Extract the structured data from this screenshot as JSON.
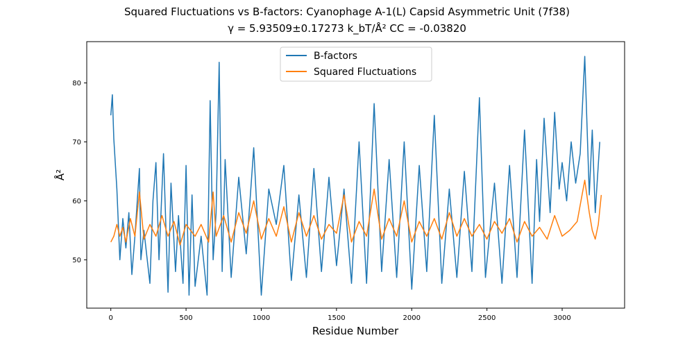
{
  "chart_data": {
    "type": "line",
    "title": "Squared Fluctuations vs B-factors: Cyanophage A-1(L) Capsid Asymmetric Unit (7f38)",
    "subtitle": "γ = 5.93509±0.17273 k_bT/Å²  CC = -0.03820",
    "xlabel": "Residue Number",
    "ylabel": "Å²",
    "xlim": [
      -160,
      3415
    ],
    "ylim": [
      41.8,
      87.0
    ],
    "xticks": [
      0,
      500,
      1000,
      1500,
      2000,
      2500,
      3000
    ],
    "yticks": [
      50,
      60,
      70,
      80
    ],
    "grid": false,
    "legend_position": "top-center",
    "series": [
      {
        "name": "B-factors",
        "color": "#1f77b4",
        "x": [
          0,
          10,
          20,
          40,
          60,
          80,
          100,
          120,
          140,
          160,
          190,
          200,
          220,
          260,
          280,
          300,
          320,
          350,
          380,
          400,
          430,
          450,
          480,
          500,
          520,
          540,
          560,
          600,
          640,
          660,
          680,
          700,
          720,
          740,
          760,
          800,
          850,
          900,
          950,
          1000,
          1050,
          1100,
          1150,
          1200,
          1250,
          1300,
          1350,
          1400,
          1450,
          1500,
          1550,
          1600,
          1650,
          1700,
          1750,
          1800,
          1850,
          1900,
          1950,
          2000,
          2050,
          2100,
          2150,
          2200,
          2250,
          2300,
          2350,
          2400,
          2450,
          2490,
          2550,
          2600,
          2650,
          2700,
          2750,
          2800,
          2830,
          2850,
          2880,
          2920,
          2950,
          2980,
          3000,
          3030,
          3060,
          3090,
          3120,
          3150,
          3180,
          3200,
          3220,
          3250
        ],
        "values": [
          74.5,
          78.0,
          70.5,
          62.0,
          50.0,
          57.0,
          52.0,
          58.0,
          47.5,
          54.0,
          65.5,
          50.0,
          55.0,
          46.0,
          60.0,
          66.5,
          50.0,
          68.0,
          44.5,
          63.0,
          48.0,
          57.5,
          46.0,
          66.0,
          44.0,
          61.0,
          45.5,
          54.0,
          44.0,
          77.0,
          50.0,
          58.0,
          83.5,
          48.0,
          67.0,
          47.0,
          64.0,
          51.0,
          69.0,
          44.0,
          62.0,
          56.0,
          66.0,
          46.5,
          61.0,
          47.0,
          65.5,
          48.0,
          64.0,
          49.0,
          62.0,
          46.0,
          70.0,
          46.0,
          76.5,
          48.0,
          67.0,
          47.0,
          70.0,
          45.0,
          66.0,
          48.0,
          74.5,
          46.0,
          62.0,
          47.0,
          65.0,
          48.0,
          77.5,
          47.0,
          63.0,
          46.0,
          66.0,
          47.0,
          72.0,
          46.0,
          67.0,
          56.5,
          74.0,
          58.0,
          75.0,
          62.0,
          66.5,
          60.0,
          70.0,
          63.0,
          68.0,
          84.5,
          61.0,
          72.0,
          58.0,
          70.0
        ]
      },
      {
        "name": "Squared Fluctuations",
        "color": "#ff7f0e",
        "x": [
          0,
          20,
          40,
          60,
          80,
          100,
          130,
          160,
          190,
          220,
          260,
          300,
          340,
          380,
          420,
          460,
          500,
          560,
          600,
          650,
          680,
          700,
          750,
          800,
          850,
          900,
          950,
          1000,
          1050,
          1100,
          1150,
          1200,
          1250,
          1300,
          1350,
          1400,
          1450,
          1500,
          1550,
          1600,
          1650,
          1700,
          1750,
          1800,
          1850,
          1900,
          1950,
          2000,
          2050,
          2100,
          2150,
          2200,
          2250,
          2300,
          2350,
          2400,
          2450,
          2500,
          2550,
          2600,
          2650,
          2700,
          2750,
          2800,
          2850,
          2900,
          2950,
          3000,
          3050,
          3100,
          3150,
          3180,
          3200,
          3220,
          3240,
          3260
        ],
        "values": [
          53.0,
          54.0,
          56.0,
          54.0,
          55.5,
          53.0,
          57.0,
          54.0,
          61.5,
          53.5,
          56.0,
          54.0,
          57.5,
          54.0,
          56.5,
          52.5,
          56.0,
          54.0,
          56.0,
          53.0,
          61.5,
          54.0,
          57.5,
          53.0,
          58.0,
          54.5,
          60.0,
          53.5,
          57.0,
          54.0,
          59.0,
          53.0,
          58.0,
          54.0,
          57.5,
          53.5,
          56.0,
          54.5,
          61.0,
          53.0,
          56.5,
          54.0,
          62.0,
          53.5,
          57.0,
          54.0,
          60.0,
          53.0,
          56.5,
          54.0,
          57.0,
          53.5,
          58.0,
          54.0,
          57.0,
          54.0,
          56.0,
          53.5,
          56.5,
          54.5,
          57.0,
          53.0,
          56.5,
          54.0,
          55.5,
          53.5,
          57.5,
          54.0,
          55.0,
          56.5,
          63.5,
          58.0,
          55.0,
          53.5,
          56.0,
          61.0
        ]
      }
    ]
  }
}
